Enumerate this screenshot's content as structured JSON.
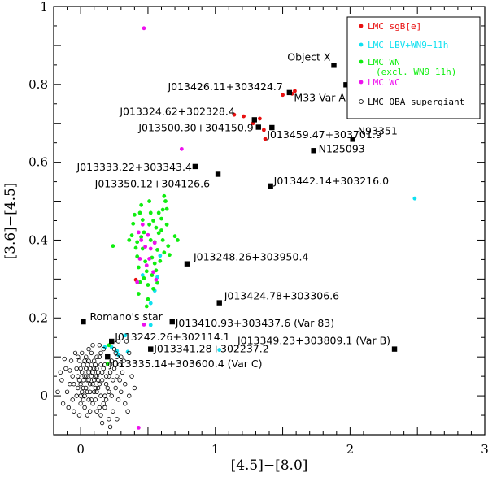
{
  "chart_data": {
    "type": "scatter",
    "title": "",
    "xlabel": "[4.5]−[8.0]",
    "ylabel": "[3.6]−[4.5]",
    "xlim": [
      -0.2,
      3.0
    ],
    "ylim": [
      -0.1,
      1.0
    ],
    "x_ticks": [
      0,
      1,
      2,
      3
    ],
    "y_ticks": [
      0,
      0.2,
      0.4,
      0.6,
      0.8,
      1
    ],
    "legend_position": "top-right",
    "legend": [
      {
        "label": "LMC sgB[e]",
        "color": "#e81010",
        "marker": "dot"
      },
      {
        "label": "LMC LBV+WN9−11h",
        "color": "#10e0f0",
        "marker": "dot"
      },
      {
        "label": "LMC WN",
        "label2": "(excl. WN9−11h)",
        "color": "#10ee10",
        "marker": "dot"
      },
      {
        "label": "LMC WC",
        "color": "#ee10ee",
        "marker": "dot"
      },
      {
        "label": "LMC OBA supergiant",
        "color": "#000000",
        "marker": "circle"
      }
    ],
    "series": [
      {
        "name": "LMC sgB[e]",
        "color": "#e81010",
        "points": [
          [
            1.5,
            0.773
          ],
          [
            1.57,
            0.776
          ],
          [
            1.59,
            0.783
          ],
          [
            1.14,
            0.722
          ],
          [
            1.21,
            0.718
          ],
          [
            1.28,
            0.7
          ],
          [
            1.36,
            0.683
          ],
          [
            1.37,
            0.66
          ],
          [
            1.33,
            0.712
          ],
          [
            0.41,
            0.298
          ]
        ]
      },
      {
        "name": "LMC LBV+WN9−11h",
        "color": "#10e0f0",
        "points": [
          [
            0.18,
            0.125
          ],
          [
            0.23,
            0.125
          ],
          [
            0.27,
            0.115
          ],
          [
            0.28,
            0.105
          ],
          [
            0.35,
            0.113
          ],
          [
            0.33,
            0.155
          ],
          [
            0.52,
            0.238
          ],
          [
            0.52,
            0.182
          ],
          [
            0.55,
            0.27
          ],
          [
            0.57,
            0.305
          ],
          [
            0.46,
            0.31
          ],
          [
            0.59,
            0.36
          ],
          [
            1.03,
            0.118
          ],
          [
            2.48,
            0.507
          ]
        ]
      },
      {
        "name": "LMC WN",
        "color": "#10ee10",
        "points": [
          [
            0.2,
            0.082
          ],
          [
            0.21,
            0.13
          ],
          [
            0.24,
            0.385
          ],
          [
            0.36,
            0.4
          ],
          [
            0.38,
            0.412
          ],
          [
            0.39,
            0.442
          ],
          [
            0.4,
            0.465
          ],
          [
            0.41,
            0.38
          ],
          [
            0.42,
            0.358
          ],
          [
            0.43,
            0.33
          ],
          [
            0.44,
            0.292
          ],
          [
            0.45,
            0.49
          ],
          [
            0.46,
            0.452
          ],
          [
            0.47,
            0.42
          ],
          [
            0.48,
            0.345
          ],
          [
            0.49,
            0.23
          ],
          [
            0.5,
            0.248
          ],
          [
            0.51,
            0.5
          ],
          [
            0.52,
            0.47
          ],
          [
            0.53,
            0.31
          ],
          [
            0.54,
            0.275
          ],
          [
            0.55,
            0.395
          ],
          [
            0.56,
            0.432
          ],
          [
            0.57,
            0.375
          ],
          [
            0.58,
            0.418
          ],
          [
            0.59,
            0.346
          ],
          [
            0.6,
            0.455
          ],
          [
            0.61,
            0.478
          ],
          [
            0.62,
            0.513
          ],
          [
            0.63,
            0.5
          ],
          [
            0.64,
            0.44
          ],
          [
            0.65,
            0.385
          ],
          [
            0.66,
            0.362
          ],
          [
            0.43,
            0.262
          ],
          [
            0.47,
            0.302
          ],
          [
            0.49,
            0.32
          ],
          [
            0.52,
            0.4
          ],
          [
            0.55,
            0.34
          ],
          [
            0.57,
            0.29
          ],
          [
            0.6,
            0.425
          ],
          [
            0.7,
            0.41
          ],
          [
            0.72,
            0.4
          ],
          [
            0.44,
            0.47
          ],
          [
            0.46,
            0.378
          ],
          [
            0.51,
            0.44
          ],
          [
            0.53,
            0.355
          ],
          [
            0.58,
            0.47
          ],
          [
            0.62,
            0.368
          ],
          [
            0.64,
            0.48
          ],
          [
            0.45,
            0.408
          ],
          [
            0.42,
            0.395
          ],
          [
            0.5,
            0.285
          ],
          [
            0.54,
            0.45
          ],
          [
            0.56,
            0.322
          ],
          [
            0.61,
            0.4
          ]
        ]
      },
      {
        "name": "LMC WC",
        "color": "#ee10ee",
        "points": [
          [
            0.47,
            0.944
          ],
          [
            0.75,
            0.634
          ],
          [
            0.43,
            0.42
          ],
          [
            0.45,
            0.4
          ],
          [
            0.48,
            0.383
          ],
          [
            0.5,
            0.413
          ],
          [
            0.46,
            0.44
          ],
          [
            0.52,
            0.378
          ],
          [
            0.44,
            0.352
          ],
          [
            0.55,
            0.393
          ],
          [
            0.49,
            0.335
          ],
          [
            0.56,
            0.298
          ],
          [
            0.54,
            0.318
          ],
          [
            0.51,
            0.352
          ],
          [
            0.42,
            0.292
          ],
          [
            0.47,
            0.183
          ],
          [
            0.43,
            -0.082
          ]
        ]
      },
      {
        "name": "LMC OBA supergiant",
        "color": "#000000",
        "points": [
          [
            -0.12,
            0.095
          ],
          [
            -0.08,
            0.065
          ],
          [
            -0.05,
            0.03
          ],
          [
            -0.02,
            0.05
          ],
          [
            0.0,
            0.07
          ],
          [
            0.02,
            0.04
          ],
          [
            0.04,
            0.02
          ],
          [
            0.06,
            0.06
          ],
          [
            0.08,
            0.08
          ],
          [
            0.1,
            0.04
          ],
          [
            0.12,
            0.01
          ],
          [
            -0.1,
            0.01
          ],
          [
            -0.06,
            -0.01
          ],
          [
            -0.03,
            0.0
          ],
          [
            0.01,
            0.01
          ],
          [
            0.03,
            0.0
          ],
          [
            0.05,
            0.04
          ],
          [
            0.07,
            0.03
          ],
          [
            0.09,
            0.06
          ],
          [
            0.11,
            0.05
          ],
          [
            0.13,
            0.02
          ],
          [
            0.15,
            0.0
          ],
          [
            0.17,
            -0.02
          ],
          [
            0.19,
            0.03
          ],
          [
            0.21,
            0.05
          ],
          [
            0.23,
            0.0
          ],
          [
            -0.14,
            0.04
          ],
          [
            -0.11,
            0.07
          ],
          [
            -0.07,
            0.09
          ],
          [
            -0.04,
            0.11
          ],
          [
            -0.01,
            0.09
          ],
          [
            0.02,
            0.08
          ],
          [
            0.04,
            0.1
          ],
          [
            0.06,
            0.12
          ],
          [
            0.08,
            0.11
          ],
          [
            0.1,
            0.09
          ],
          [
            0.12,
            0.07
          ],
          [
            0.14,
            0.1
          ],
          [
            0.16,
            0.06
          ],
          [
            0.18,
            0.08
          ],
          [
            0.2,
            0.1
          ],
          [
            0.22,
            0.06
          ],
          [
            0.24,
            0.04
          ],
          [
            0.26,
            0.02
          ],
          [
            0.28,
            -0.01
          ],
          [
            0.3,
            0.01
          ],
          [
            -0.09,
            -0.03
          ],
          [
            -0.05,
            -0.04
          ],
          [
            0.0,
            -0.02
          ],
          [
            0.03,
            -0.03
          ],
          [
            0.06,
            -0.01
          ],
          [
            0.09,
            -0.02
          ],
          [
            0.12,
            -0.04
          ],
          [
            0.15,
            -0.05
          ],
          [
            0.18,
            -0.03
          ],
          [
            0.21,
            -0.06
          ],
          [
            0.24,
            -0.04
          ],
          [
            0.27,
            -0.06
          ],
          [
            -0.17,
            0.01
          ],
          [
            -0.15,
            0.06
          ],
          [
            -0.13,
            -0.02
          ],
          [
            0.0,
            0.03
          ],
          [
            0.01,
            0.06
          ],
          [
            0.02,
            0.02
          ],
          [
            0.03,
            0.05
          ],
          [
            0.04,
            0.07
          ],
          [
            0.05,
            0.01
          ],
          [
            0.06,
            0.04
          ],
          [
            0.07,
            0.07
          ],
          [
            0.08,
            0.05
          ],
          [
            0.09,
            0.03
          ],
          [
            0.1,
            0.07
          ],
          [
            0.11,
            0.02
          ],
          [
            0.12,
            0.05
          ],
          [
            0.13,
            0.06
          ],
          [
            0.14,
            0.03
          ],
          [
            0.16,
            0.04
          ],
          [
            0.17,
            0.07
          ],
          [
            0.19,
            0.05
          ],
          [
            -0.02,
            0.02
          ],
          [
            -0.01,
            0.04
          ],
          [
            0.0,
            0.0
          ],
          [
            0.02,
            -0.01
          ],
          [
            0.04,
            0.05
          ],
          [
            0.05,
            0.08
          ],
          [
            0.07,
            0.01
          ],
          [
            0.08,
            -0.01
          ],
          [
            0.1,
            0.01
          ],
          [
            0.11,
            0.08
          ],
          [
            0.13,
            0.04
          ],
          [
            0.15,
            0.08
          ],
          [
            0.18,
            0.0
          ],
          [
            0.2,
            0.02
          ],
          [
            0.22,
            0.08
          ],
          [
            0.25,
            0.07
          ],
          [
            0.27,
            0.05
          ],
          [
            0.29,
            0.04
          ],
          [
            0.31,
            0.06
          ],
          [
            0.33,
            -0.02
          ],
          [
            0.35,
            -0.04
          ],
          [
            0.32,
            0.09
          ],
          [
            0.36,
            0.11
          ],
          [
            0.34,
            0.14
          ],
          [
            0.26,
            0.11
          ],
          [
            0.23,
            0.09
          ],
          [
            0.14,
            0.13
          ],
          [
            0.09,
            0.13
          ],
          [
            -0.03,
            0.07
          ],
          [
            -0.06,
            0.05
          ],
          [
            -0.08,
            0.03
          ],
          [
            0.15,
            0.11
          ],
          [
            0.17,
            0.12
          ],
          [
            0.27,
            0.1
          ],
          [
            0.29,
            0.08
          ],
          [
            0.21,
            0.01
          ],
          [
            0.19,
            -0.01
          ],
          [
            0.14,
            -0.03
          ],
          [
            0.11,
            -0.01
          ],
          [
            0.07,
            -0.04
          ],
          [
            0.16,
            -0.07
          ],
          [
            0.22,
            -0.08
          ],
          [
            0.03,
            0.09
          ],
          [
            0.01,
            0.11
          ],
          [
            -0.02,
            0.1
          ],
          [
            0.06,
            0.09
          ],
          [
            0.12,
            0.1
          ],
          [
            0.05,
            -0.05
          ],
          [
            -0.01,
            -0.05
          ],
          [
            0.25,
            0.12
          ],
          [
            0.3,
            0.1
          ],
          [
            0.28,
            0.14
          ],
          [
            0.38,
            0.05
          ],
          [
            0.4,
            0.02
          ],
          [
            0.33,
            0.03
          ],
          [
            0.36,
            0.0
          ]
        ]
      }
    ],
    "named_objects": [
      {
        "label": "Object X",
        "x": 1.88,
        "y": 0.849
      },
      {
        "label": "M33 Var A",
        "x": 1.97,
        "y": 0.799
      },
      {
        "label": "J013426.11+303424.7",
        "x": 1.55,
        "y": 0.779
      },
      {
        "label": "J013324.62+302328.4",
        "x": 1.29,
        "y": 0.709
      },
      {
        "label": "J013459.47+303701.9",
        "x": 1.42,
        "y": 0.689
      },
      {
        "label": "J013500.30+304150.9",
        "x": 1.32,
        "y": 0.69
      },
      {
        "label": "N93351",
        "x": 2.02,
        "y": 0.659
      },
      {
        "label": "N125093",
        "x": 1.73,
        "y": 0.63
      },
      {
        "label": "J013333.22+303343.4",
        "x": 0.85,
        "y": 0.589
      },
      {
        "label": "J013350.12+304126.6",
        "x": 1.02,
        "y": 0.569
      },
      {
        "label": "J013442.14+303216.0",
        "x": 1.41,
        "y": 0.539
      },
      {
        "label": "J013248.26+303950.4",
        "x": 0.79,
        "y": 0.339
      },
      {
        "label": "J013424.78+303306.6",
        "x": 1.03,
        "y": 0.239
      },
      {
        "label": "Romano's star",
        "x": 0.02,
        "y": 0.19
      },
      {
        "label": "J013410.93+303437.6 (Var 83)",
        "x": 0.68,
        "y": 0.19
      },
      {
        "label": "J013242.26+302114.1",
        "x": 0.23,
        "y": 0.14
      },
      {
        "label": "J013349.23+303809.1 (Var B)",
        "x": 2.33,
        "y": 0.12
      },
      {
        "label": "J013341.28+302237.2",
        "x": 0.52,
        "y": 0.12
      },
      {
        "label": "J013335.14+303600.4 (Var C)",
        "x": 0.2,
        "y": 0.1
      }
    ]
  }
}
